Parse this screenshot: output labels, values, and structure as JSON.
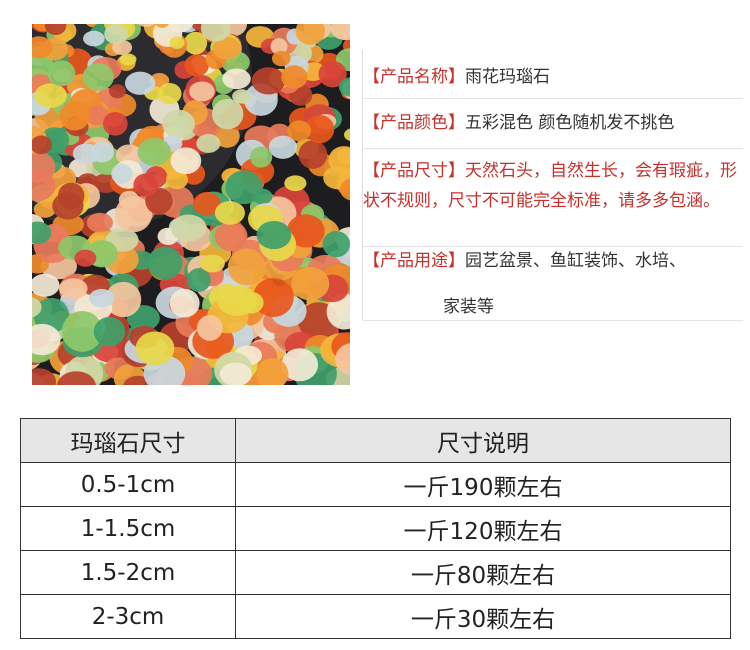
{
  "product_info": [
    {
      "label": "【产品名称】",
      "value": "雨花玛瑙石"
    },
    {
      "label": "【产品颜色】",
      "value": "五彩混色 颜色随机发不挑色"
    },
    {
      "label": "【产品尺寸】",
      "value": "天然石头，自然生长，会有瑕疵，形状不规则，尺寸不可能完全标准，请多多包涵。"
    },
    {
      "label": "【产品用途】",
      "value": "园艺盆景、鱼缸装饰、水培、",
      "continuation": "家装等"
    }
  ],
  "table": {
    "header": [
      "玛瑙石尺寸",
      "尺寸说明"
    ],
    "rows": [
      [
        "0.5-1cm",
        "一斤190颗左右"
      ],
      [
        "1-1.5cm",
        "一斤120颗左右"
      ],
      [
        "1.5-2cm",
        "一斤80颗左右"
      ],
      [
        "2-3cm",
        "一斤30颗左右"
      ]
    ]
  }
}
